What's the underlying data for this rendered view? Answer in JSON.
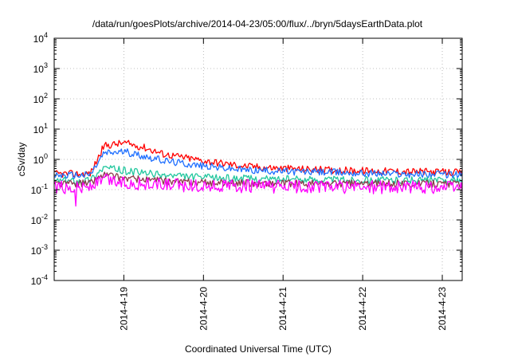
{
  "chart_data": {
    "type": "line",
    "title": "/data/run/goesPlots/archive/2014-04-23/05:00/flux/../bryn/5daysEarthData.plot",
    "xlabel": "Coordinated Universal Time (UTC)",
    "ylabel": "cSv/day",
    "yscale": "log",
    "ylim": [
      0.0001,
      10000
    ],
    "yticks": [
      {
        "value": 0.0001,
        "base": "10",
        "exp": "-4"
      },
      {
        "value": 0.001,
        "base": "10",
        "exp": "-3"
      },
      {
        "value": 0.01,
        "base": "10",
        "exp": "-2"
      },
      {
        "value": 0.1,
        "base": "10",
        "exp": "-1"
      },
      {
        "value": 1,
        "base": "10",
        "exp": "0"
      },
      {
        "value": 10,
        "base": "10",
        "exp": "1"
      },
      {
        "value": 100,
        "base": "10",
        "exp": "2"
      },
      {
        "value": 1000,
        "base": "10",
        "exp": "3"
      },
      {
        "value": 10000,
        "base": "10",
        "exp": "4"
      }
    ],
    "xlim": [
      "2014-04-18 03:00",
      "2014-04-23 06:00"
    ],
    "xticks": [
      "2014-4-19",
      "2014-4-20",
      "2014-4-21",
      "2014-4-22",
      "2014-4-23"
    ],
    "grid": true,
    "series": [
      {
        "color": "#ff0000",
        "x": [
          "2014-04-18 03:00",
          "2014-04-18 12:00",
          "2014-04-18 14:00",
          "2014-04-18 18:00",
          "2014-04-19 00:00",
          "2014-04-19 06:00",
          "2014-04-19 12:00",
          "2014-04-20 00:00",
          "2014-04-20 12:00",
          "2014-04-21 00:00",
          "2014-04-21 12:00",
          "2014-04-22 00:00",
          "2014-04-22 12:00",
          "2014-04-23 00:00",
          "2014-04-23 06:00"
        ],
        "y": [
          0.33,
          0.33,
          0.35,
          2.8,
          3.5,
          2.5,
          1.5,
          0.9,
          0.6,
          0.5,
          0.45,
          0.42,
          0.4,
          0.38,
          0.36
        ]
      },
      {
        "color": "#1f6fff",
        "x": [
          "2014-04-18 03:00",
          "2014-04-18 12:00",
          "2014-04-18 14:00",
          "2014-04-18 18:00",
          "2014-04-19 00:00",
          "2014-04-19 06:00",
          "2014-04-19 12:00",
          "2014-04-20 00:00",
          "2014-04-20 12:00",
          "2014-04-21 00:00",
          "2014-04-21 12:00",
          "2014-04-22 00:00",
          "2014-04-22 12:00",
          "2014-04-23 00:00",
          "2014-04-23 06:00"
        ],
        "y": [
          0.3,
          0.3,
          0.32,
          1.6,
          1.8,
          1.3,
          0.9,
          0.6,
          0.45,
          0.4,
          0.38,
          0.35,
          0.33,
          0.32,
          0.31
        ]
      },
      {
        "color": "#22c79e",
        "x": [
          "2014-04-18 03:00",
          "2014-04-18 12:00",
          "2014-04-18 14:00",
          "2014-04-18 18:00",
          "2014-04-19 00:00",
          "2014-04-19 12:00",
          "2014-04-20 00:00",
          "2014-04-21 00:00",
          "2014-04-22 00:00",
          "2014-04-23 06:00"
        ],
        "y": [
          0.2,
          0.2,
          0.22,
          0.55,
          0.42,
          0.3,
          0.25,
          0.22,
          0.21,
          0.2
        ]
      },
      {
        "color": "#8b3a4a",
        "x": [
          "2014-04-18 03:00",
          "2014-04-18 12:00",
          "2014-04-18 14:00",
          "2014-04-18 18:00",
          "2014-04-19 00:00",
          "2014-04-19 12:00",
          "2014-04-20 00:00",
          "2014-04-21 00:00",
          "2014-04-22 00:00",
          "2014-04-23 06:00"
        ],
        "y": [
          0.16,
          0.16,
          0.17,
          0.32,
          0.24,
          0.19,
          0.17,
          0.16,
          0.16,
          0.155
        ]
      },
      {
        "color": "#ff00ff",
        "x": [
          "2014-04-18 03:00",
          "2014-04-18 12:00",
          "2014-04-18 14:00",
          "2014-04-18 18:00",
          "2014-04-19 00:00",
          "2014-04-19 12:00",
          "2014-04-20 00:00",
          "2014-04-21 00:00",
          "2014-04-22 00:00",
          "2014-04-23 06:00"
        ],
        "y": [
          0.12,
          0.12,
          0.13,
          0.22,
          0.17,
          0.14,
          0.13,
          0.125,
          0.12,
          0.12
        ]
      }
    ]
  }
}
